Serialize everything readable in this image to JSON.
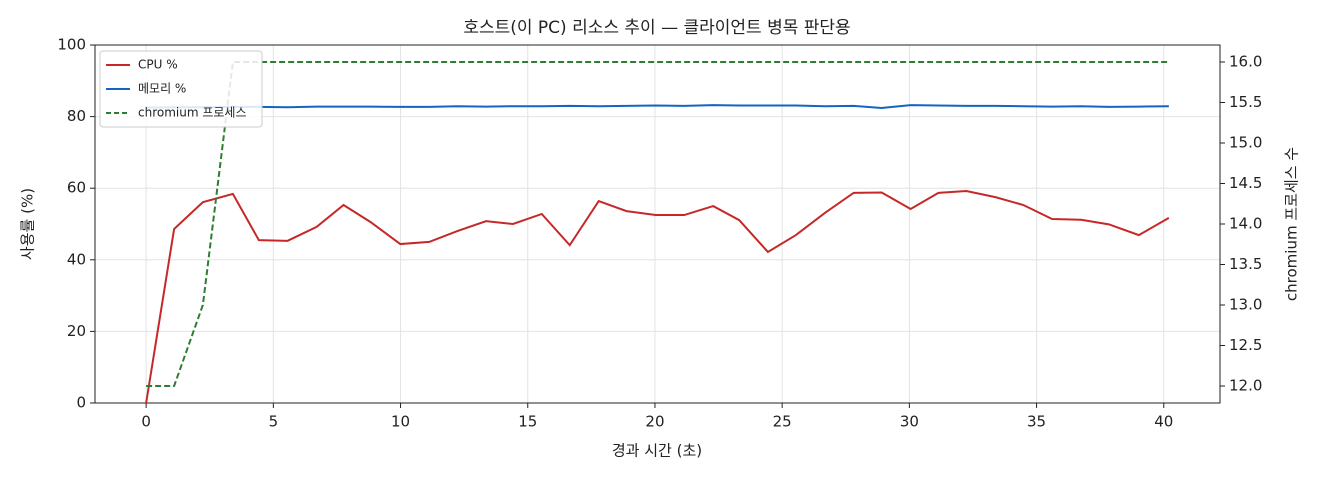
{
  "chart_data": {
    "type": "line",
    "title": "호스트(이 PC) 리소스 추이 — 클라이언트 병목 판단용",
    "xlabel": "경과 시간 (초)",
    "ylabel": "사용률 (%)",
    "y2label": "chromium 프로세스 수",
    "x": [
      0,
      1.1,
      2.23,
      3.41,
      4.43,
      5.56,
      6.7,
      7.76,
      8.81,
      9.99,
      11.13,
      12.22,
      13.36,
      14.42,
      15.55,
      16.65,
      17.79,
      18.88,
      20.02,
      21.15,
      22.29,
      23.31,
      24.44,
      25.54,
      26.68,
      27.81,
      28.91,
      30.05,
      31.14,
      32.24,
      33.38,
      34.48,
      35.61,
      36.75,
      37.84,
      39.02,
      40.2
    ],
    "series": [
      {
        "name": "CPU %",
        "color": "#c62828",
        "linestyle": "solid",
        "axis": "y",
        "values": [
          0,
          48.6,
          56.1,
          58.4,
          45.5,
          45.3,
          49.2,
          55.3,
          50.6,
          44.4,
          45.0,
          48.0,
          50.8,
          50.0,
          52.8,
          44.1,
          56.4,
          53.6,
          52.5,
          52.5,
          55.0,
          51.1,
          42.2,
          46.9,
          53.1,
          58.7,
          58.8,
          54.2,
          58.7,
          59.2,
          57.5,
          55.3,
          51.4,
          51.2,
          49.9,
          46.9,
          51.7
        ]
      },
      {
        "name": "메모리 %",
        "color": "#1565c0",
        "linestyle": "solid",
        "axis": "y",
        "values": [
          82.5,
          82.6,
          82.6,
          82.7,
          82.7,
          82.6,
          82.8,
          82.8,
          82.8,
          82.7,
          82.7,
          82.9,
          82.8,
          82.9,
          82.9,
          83.0,
          82.9,
          83.0,
          83.1,
          83.0,
          83.2,
          83.1,
          83.1,
          83.1,
          82.9,
          83.0,
          82.4,
          83.2,
          83.1,
          83.0,
          83.0,
          82.9,
          82.8,
          82.9,
          82.7,
          82.8,
          82.9
        ]
      },
      {
        "name": "chromium 프로세스",
        "color": "#2e7d32",
        "linestyle": "dashed",
        "axis": "y2",
        "values": [
          12,
          12,
          13,
          16,
          16,
          16,
          16,
          16,
          16,
          16,
          16,
          16,
          16,
          16,
          16,
          16,
          16,
          16,
          16,
          16,
          16,
          16,
          16,
          16,
          16,
          16,
          16,
          16,
          16,
          16,
          16,
          16,
          16,
          16,
          16,
          16,
          16
        ]
      }
    ],
    "xlim": [
      -2.01,
      42.21
    ],
    "xticks": [
      0,
      5,
      10,
      15,
      20,
      25,
      30,
      35,
      40
    ],
    "ylim": [
      0,
      100
    ],
    "yticks": [
      0,
      20,
      40,
      60,
      80,
      100
    ],
    "y2lim": [
      11.79,
      16.21
    ],
    "y2ticks": [
      {
        "value": 12,
        "label": "12.0"
      },
      12.5,
      {
        "value": 13,
        "label": "13.0"
      },
      13.5,
      {
        "value": 14,
        "label": "14.0"
      },
      14.5,
      {
        "value": 15,
        "label": "15.0"
      },
      15.5,
      {
        "value": 16,
        "label": "16.0"
      }
    ],
    "grid": true,
    "legend": "upper-left"
  }
}
